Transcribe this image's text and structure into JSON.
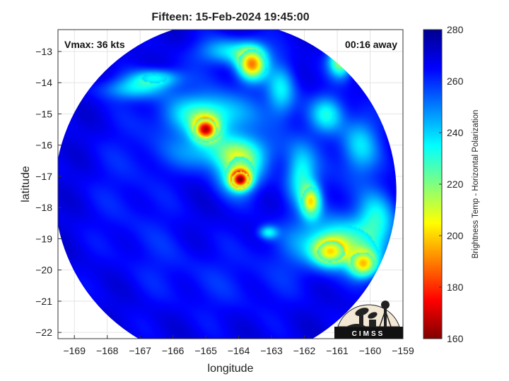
{
  "chart_data": {
    "type": "heatmap",
    "title": "Fifteen: 15-Feb-2024 19:45:00",
    "xlabel": "longitude",
    "ylabel": "latitude",
    "xlim": [
      -169.5,
      -159
    ],
    "ylim": [
      -22.2,
      -12.3
    ],
    "xticks": [
      -169,
      -168,
      -167,
      -166,
      -165,
      -164,
      -163,
      -162,
      -161,
      -160,
      -159
    ],
    "yticks": [
      -13,
      -14,
      -15,
      -16,
      -17,
      -18,
      -19,
      -20,
      -21,
      -22
    ],
    "grid": true,
    "annotations": {
      "vmax": "Vmax: 36 kts",
      "time_away": "00:16 away"
    },
    "colorbar": {
      "label": "Brightness Temp - Horizontal Polarization",
      "min": 160,
      "max": 280,
      "ticks": [
        280,
        260,
        240,
        220,
        200,
        180,
        160
      ],
      "colormap": "jet_reversed"
    },
    "swath": {
      "center": [
        -164.4,
        -17.5
      ],
      "radius_deg": 5.2,
      "background_value": 268
    },
    "features": [
      {
        "lon": -165.0,
        "lat": -15.5,
        "value": 175,
        "sigma_lon": 0.25,
        "sigma_lat": 0.25
      },
      {
        "lon": -164.95,
        "lat": -15.05,
        "value": 230,
        "sigma_lon": 0.8,
        "sigma_lat": 0.45
      },
      {
        "lon": -163.95,
        "lat": -17.1,
        "value": 165,
        "sigma_lon": 0.2,
        "sigma_lat": 0.2
      },
      {
        "lon": -164.0,
        "lat": -16.85,
        "value": 222,
        "sigma_lon": 0.45,
        "sigma_lat": 0.5
      },
      {
        "lon": -164.4,
        "lat": -16.2,
        "value": 235,
        "sigma_lon": 1.0,
        "sigma_lat": 0.4
      },
      {
        "lon": -163.6,
        "lat": -13.4,
        "value": 195,
        "sigma_lon": 0.3,
        "sigma_lat": 0.35
      },
      {
        "lon": -164.2,
        "lat": -13.0,
        "value": 238,
        "sigma_lon": 0.7,
        "sigma_lat": 0.3
      },
      {
        "lon": -160.9,
        "lat": -13.3,
        "value": 215,
        "sigma_lon": 0.25,
        "sigma_lat": 0.35
      },
      {
        "lon": -166.5,
        "lat": -13.85,
        "value": 235,
        "sigma_lon": 0.5,
        "sigma_lat": 0.2
      },
      {
        "lon": -167.2,
        "lat": -14.2,
        "value": 242,
        "sigma_lon": 0.7,
        "sigma_lat": 0.25
      },
      {
        "lon": -162.7,
        "lat": -14.2,
        "value": 240,
        "sigma_lon": 0.3,
        "sigma_lat": 0.6
      },
      {
        "lon": -161.3,
        "lat": -15.0,
        "value": 238,
        "sigma_lon": 0.35,
        "sigma_lat": 0.4
      },
      {
        "lon": -161.8,
        "lat": -17.8,
        "value": 210,
        "sigma_lon": 0.2,
        "sigma_lat": 0.35
      },
      {
        "lon": -162.1,
        "lat": -17.0,
        "value": 238,
        "sigma_lon": 0.3,
        "sigma_lat": 0.6
      },
      {
        "lon": -161.2,
        "lat": -19.4,
        "value": 205,
        "sigma_lon": 0.35,
        "sigma_lat": 0.3
      },
      {
        "lon": -160.2,
        "lat": -19.8,
        "value": 200,
        "sigma_lon": 0.3,
        "sigma_lat": 0.3
      },
      {
        "lon": -160.8,
        "lat": -19.1,
        "value": 232,
        "sigma_lon": 1.0,
        "sigma_lat": 0.55
      },
      {
        "lon": -159.8,
        "lat": -18.3,
        "value": 240,
        "sigma_lon": 0.4,
        "sigma_lat": 0.6
      },
      {
        "lon": -160.3,
        "lat": -16.0,
        "value": 240,
        "sigma_lon": 0.4,
        "sigma_lat": 0.7
      },
      {
        "lon": -163.1,
        "lat": -18.8,
        "value": 238,
        "sigma_lon": 0.2,
        "sigma_lat": 0.15
      }
    ]
  }
}
